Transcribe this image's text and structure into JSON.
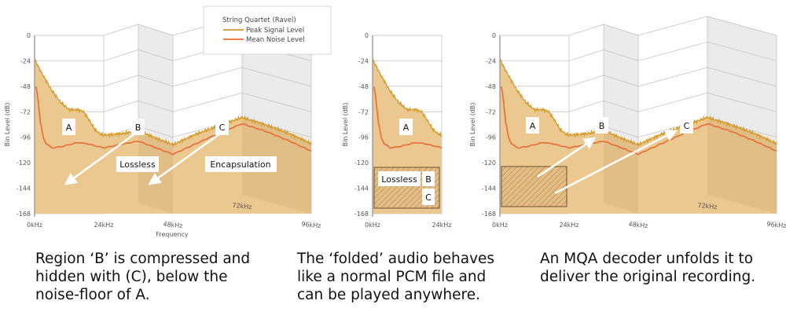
{
  "colors": {
    "peak": "#d39a2c",
    "noise": "#e96b35",
    "fill": "#ebc88f",
    "back_grey": "#ebebeb",
    "grid": "#bdbdbd"
  },
  "legend": {
    "title": "String Quartet (Ravel)",
    "peak_label": "Peak Signal Level",
    "noise_label": "Mean Noise Level"
  },
  "axis": {
    "ylabel": "Bin Level (dB)",
    "xlabel": "Frequency",
    "y_ticks": [
      "0",
      "-24",
      "-48",
      "-72",
      "-96",
      "-120",
      "-144",
      "-168"
    ],
    "x_ticks": [
      "0kHz",
      "24kHz",
      "48kHz",
      "72kHz",
      "96kHz"
    ]
  },
  "chart_data": {
    "type": "line",
    "title": "String Quartet (Ravel)",
    "xlabel": "Frequency (kHz)",
    "ylabel": "Bin Level (dB)",
    "xlim": [
      0,
      96
    ],
    "ylim": [
      -168,
      0
    ],
    "series": [
      {
        "name": "Peak Signal Level",
        "x": [
          0,
          1,
          3,
          6,
          9,
          12,
          15,
          17,
          19,
          21,
          23,
          24,
          30,
          36,
          42,
          48,
          56,
          64,
          72,
          80,
          88,
          96
        ],
        "values": [
          -22,
          -28,
          -38,
          -52,
          -63,
          -70,
          -70,
          -72,
          -80,
          -89,
          -93,
          -94,
          -98,
          -100,
          -102,
          -103,
          -99,
          -97,
          -95,
          -96,
          -98,
          -102
        ]
      },
      {
        "name": "Mean Noise Level",
        "x": [
          0.5,
          1,
          2,
          3,
          4,
          6,
          9,
          12,
          15,
          18,
          21,
          24,
          30,
          36,
          42,
          48,
          56,
          64,
          72,
          80,
          88,
          96
        ],
        "values": [
          -48,
          -56,
          -82,
          -96,
          -102,
          -106,
          -105,
          -103,
          -101,
          -102,
          -104,
          -106,
          -108,
          -110,
          -111,
          -112,
          -108,
          -104,
          -101,
          -102,
          -105,
          -109
        ]
      }
    ]
  },
  "panel1": {
    "label_a": "A",
    "label_b": "B",
    "label_c": "C",
    "lossless": "Lossless",
    "encapsulation": "Encapsulation"
  },
  "panel2": {
    "label_a": "A",
    "label_b": "B",
    "label_c": "C",
    "lossless": "Lossless"
  },
  "panel3": {
    "label_a": "A",
    "label_b": "B",
    "label_c": "C"
  },
  "captions": {
    "left": [
      "Region ‘B’ is compressed and",
      "hidden with (C), below the",
      "noise-floor of A."
    ],
    "middle": [
      "The ‘folded’ audio behaves",
      "like a normal PCM file and",
      "can be played anywhere."
    ],
    "right": [
      "An MQA decoder unfolds it to",
      "deliver the original recording."
    ]
  }
}
